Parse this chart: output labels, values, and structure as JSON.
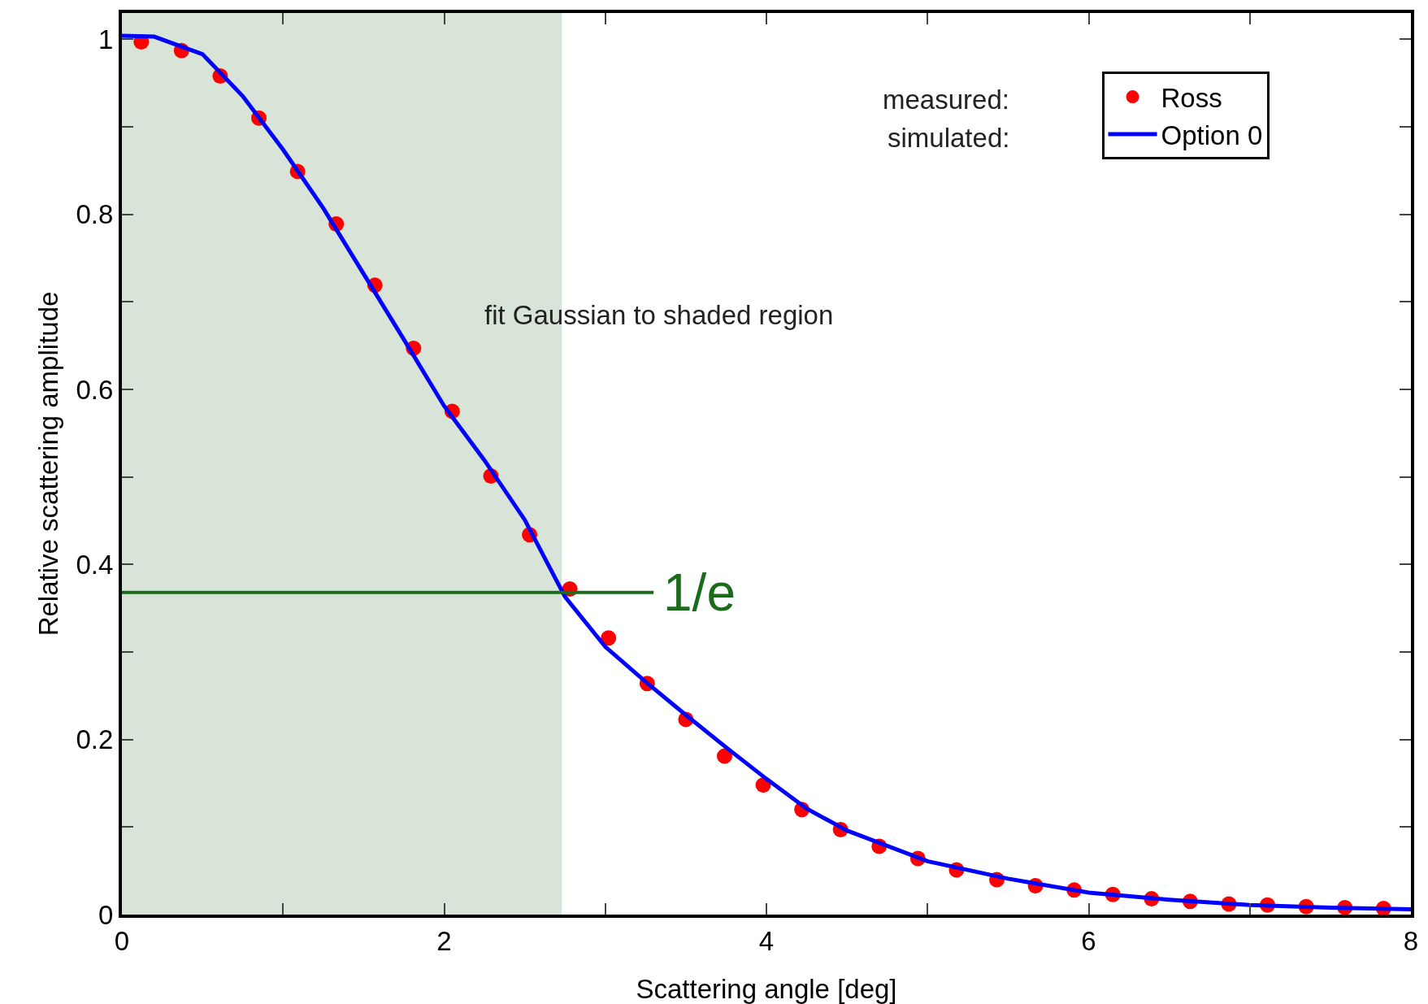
{
  "chart_data": {
    "type": "scatter",
    "xlabel": "Scattering angle [deg]",
    "ylabel": "Relative scattering amplitude",
    "xlim": [
      0,
      8
    ],
    "ylim": [
      0,
      1.03
    ],
    "xticks": [
      0,
      {
        "value": 1,
        "label": null
      },
      2,
      {
        "value": 3,
        "label": null
      },
      4,
      {
        "value": 5,
        "label": null
      },
      6,
      {
        "value": 7,
        "label": null
      },
      8
    ],
    "yticks": [
      0,
      {
        "value": 0.1,
        "label": null
      },
      0.2,
      {
        "value": 0.3,
        "label": null
      },
      0.4,
      {
        "value": 0.5,
        "label": null
      },
      0.6,
      {
        "value": 0.7,
        "label": null
      },
      0.8,
      {
        "value": 0.9,
        "label": null
      },
      1
    ],
    "grid": false,
    "legend": "top right",
    "line_style": "solid",
    "bands": [
      {
        "axis": "x",
        "from": 0,
        "to": 2.73,
        "color": "#d9e4d9"
      }
    ],
    "annotations": [
      "fit Gaussian to shaded region",
      "measured:",
      "simulated:",
      {
        "text": "1/e",
        "x": 3.3,
        "y": 0.368
      }
    ],
    "series": [
      {
        "name": "Ross",
        "marker": "circle",
        "color": "#ff0000",
        "x": [
          0.12,
          0.37,
          0.61,
          0.85,
          1.09,
          1.33,
          1.57,
          1.81,
          2.05,
          2.29,
          2.53,
          2.78,
          3.02,
          3.26,
          3.5,
          3.74,
          3.98,
          4.22,
          4.46,
          4.7,
          4.94,
          5.18,
          5.43,
          5.67,
          5.91,
          6.15,
          6.39,
          6.63,
          6.87,
          7.11,
          7.35,
          7.59,
          7.83
        ],
        "values": [
          0.997,
          0.987,
          0.958,
          0.91,
          0.849,
          0.789,
          0.719,
          0.647,
          0.575,
          0.501,
          0.434,
          0.372,
          0.316,
          0.264,
          0.223,
          0.181,
          0.148,
          0.12,
          0.097,
          0.078,
          0.064,
          0.051,
          0.04,
          0.033,
          0.028,
          0.023,
          0.018,
          0.015,
          0.012,
          0.011,
          0.009,
          0.008,
          0.007
        ]
      },
      {
        "name": "Option 0",
        "type": "line",
        "marker": "none",
        "color": "#0000ff",
        "x": [
          0,
          0.2,
          0.5,
          0.75,
          1,
          1.25,
          1.5,
          1.75,
          2,
          2.25,
          2.5,
          2.75,
          3,
          3.25,
          3.5,
          3.75,
          4,
          4.25,
          4.5,
          5,
          5.5,
          6,
          6.5,
          7,
          7.5,
          8
        ],
        "values": [
          1.004,
          1.003,
          0.983,
          0.935,
          0.874,
          0.807,
          0.732,
          0.657,
          0.581,
          0.519,
          0.451,
          0.363,
          0.306,
          0.266,
          0.228,
          0.191,
          0.155,
          0.121,
          0.096,
          0.061,
          0.041,
          0.025,
          0.017,
          0.011,
          0.008,
          0.006
        ]
      },
      {
        "type": "line",
        "marker": "none",
        "color": "#1a6b1a",
        "x": [
          0,
          3.3
        ],
        "values": [
          0.368,
          0.368
        ]
      }
    ]
  }
}
